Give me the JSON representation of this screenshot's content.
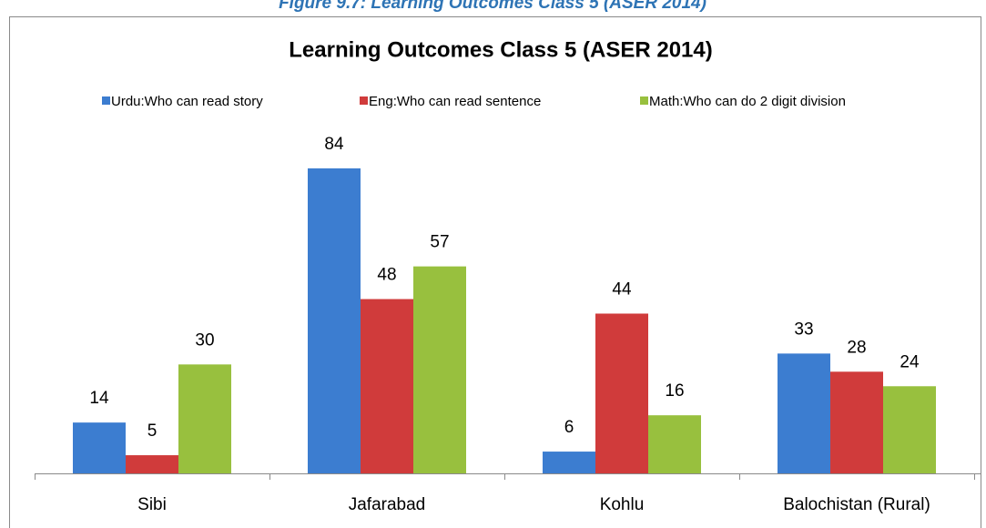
{
  "caption": "Figure 9.7: Learning Outcomes Class 5 (ASER 2014)",
  "chart_data": {
    "type": "bar",
    "title": "Learning Outcomes Class 5 (ASER 2014)",
    "categories": [
      "Sibi",
      "Jafarabad",
      "Kohlu",
      "Balochistan (Rural)"
    ],
    "series": [
      {
        "name": "Urdu:Who can read story",
        "color": "#3c7dd0",
        "values": [
          14,
          84,
          6,
          33
        ]
      },
      {
        "name": "Eng:Who can read sentence",
        "color": "#d03b3b",
        "values": [
          5,
          48,
          44,
          28
        ]
      },
      {
        "name": "Math:Who can do 2 digit division",
        "color": "#98c03e",
        "values": [
          30,
          57,
          16,
          24
        ]
      }
    ],
    "ylim": [
      0,
      90
    ],
    "legend": "top"
  }
}
